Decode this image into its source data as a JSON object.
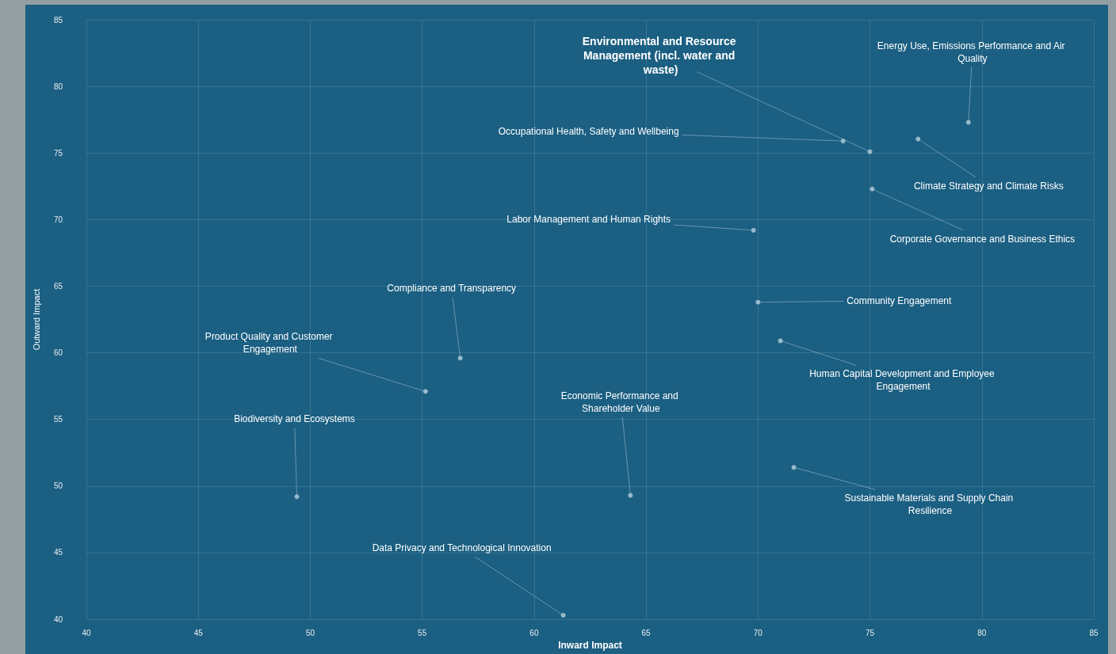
{
  "chart_data": {
    "type": "scatter",
    "xlabel": "Inward Impact",
    "ylabel": "Outward Impact",
    "x": [
      79.4,
      77.15,
      75.0,
      73.8,
      75.1,
      69.8,
      70.0,
      71.0,
      56.7,
      55.15,
      49.4,
      64.3,
      71.6,
      61.3
    ],
    "values": [
      77.3,
      76.05,
      75.1,
      75.9,
      72.3,
      69.2,
      63.8,
      60.9,
      59.6,
      57.1,
      49.2,
      49.3,
      51.4,
      40.3
    ],
    "color": "#b4cedc",
    "marker": "circle",
    "xlim": [
      40,
      85
    ],
    "xticks": [
      40,
      45,
      50,
      55,
      60,
      65,
      70,
      75,
      80,
      85
    ],
    "ylim": [
      40,
      85
    ],
    "yticks": [
      40,
      45,
      50,
      55,
      60,
      65,
      70,
      75,
      80,
      85
    ],
    "grid": true,
    "annotations": [
      {
        "text": "Energy Use, Emissions Performance and Air Quality",
        "x": 79.4,
        "y": 77.3
      },
      {
        "text": "Climate Strategy and Climate Risks",
        "x": 77.15,
        "y": 76.05
      },
      {
        "text": "Environmental and Resource Management (incl. water and waste)",
        "x": 75.0,
        "y": 75.1
      },
      {
        "text": "Occupational Health, Safety and Wellbeing",
        "x": 73.8,
        "y": 75.9
      },
      {
        "text": "Corporate Governance and Business Ethics",
        "x": 75.1,
        "y": 72.3
      },
      {
        "text": "Labor Management and Human Rights",
        "x": 69.8,
        "y": 69.2
      },
      {
        "text": "Community Engagement",
        "x": 70.0,
        "y": 63.8
      },
      {
        "text": "Human Capital Development and Employee Engagement",
        "x": 71.0,
        "y": 60.9
      },
      {
        "text": "Compliance and Transparency",
        "x": 56.7,
        "y": 59.6
      },
      {
        "text": "Product Quality and Customer Engagement",
        "x": 55.15,
        "y": 57.1
      },
      {
        "text": "Biodiversity and Ecosystems",
        "x": 49.4,
        "y": 49.2
      },
      {
        "text": "Economic Performance and Shareholder Value",
        "x": 64.3,
        "y": 49.3
      },
      {
        "text": "Sustainable Materials and Supply Chain Resilience",
        "x": 71.6,
        "y": 51.4
      },
      {
        "text": "Data Privacy and Technological Innovation",
        "x": 61.3,
        "y": 40.3
      }
    ]
  }
}
